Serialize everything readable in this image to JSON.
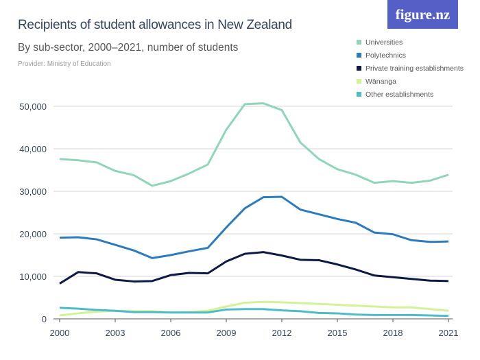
{
  "title": "Recipients of student allowances in New Zealand",
  "subtitle": "By sub-sector, 2000–2021, number of students",
  "provider": "Provider: Ministry of Education",
  "logo": "figure.nz",
  "chart_data": {
    "type": "line",
    "title": "Recipients of student allowances in New Zealand",
    "x": [
      2000,
      2001,
      2002,
      2003,
      2004,
      2005,
      2006,
      2007,
      2008,
      2009,
      2010,
      2011,
      2012,
      2013,
      2014,
      2015,
      2016,
      2017,
      2018,
      2019,
      2020,
      2021
    ],
    "xticks": [
      "2000",
      "2003",
      "2006",
      "2009",
      "2012",
      "2015",
      "2018",
      "2021"
    ],
    "yticks": [
      "0",
      "10,000",
      "20,000",
      "30,000",
      "40,000",
      "50,000"
    ],
    "ylim": [
      0,
      50000
    ],
    "grid": true,
    "legend": "top-right",
    "series": [
      {
        "name": "Universities",
        "color": "#8fd6b8",
        "values": [
          37600,
          37300,
          36800,
          34800,
          33800,
          31300,
          32400,
          34200,
          36300,
          44500,
          50500,
          50700,
          49100,
          41500,
          37600,
          35200,
          33900,
          32000,
          32400,
          32000,
          32500,
          33900
        ]
      },
      {
        "name": "Polytechnics",
        "color": "#2b7bbf",
        "values": [
          19100,
          19200,
          18700,
          17400,
          16100,
          14300,
          15000,
          15900,
          16700,
          21500,
          26000,
          28600,
          28700,
          25700,
          24600,
          23500,
          22600,
          20300,
          19900,
          18500,
          18100,
          18200
        ]
      },
      {
        "name": "Private training establishments",
        "color": "#0c1a45",
        "values": [
          8300,
          11000,
          10700,
          9200,
          8800,
          8900,
          10300,
          10800,
          10700,
          13500,
          15300,
          15700,
          14900,
          13900,
          13800,
          12800,
          11600,
          10200,
          9800,
          9400,
          9000,
          8900
        ]
      },
      {
        "name": "Wānanga",
        "color": "#d3f296",
        "values": [
          800,
          1300,
          1700,
          1900,
          1800,
          1800,
          1500,
          1600,
          1900,
          2900,
          3800,
          4000,
          3900,
          3700,
          3500,
          3300,
          3100,
          2900,
          2700,
          2700,
          2300,
          1900
        ]
      },
      {
        "name": "Other establishments",
        "color": "#4dbcc8",
        "values": [
          2600,
          2400,
          2100,
          1900,
          1600,
          1600,
          1500,
          1500,
          1500,
          2200,
          2300,
          2300,
          2000,
          1800,
          1400,
          1300,
          1000,
          900,
          900,
          900,
          800,
          700
        ]
      }
    ]
  }
}
